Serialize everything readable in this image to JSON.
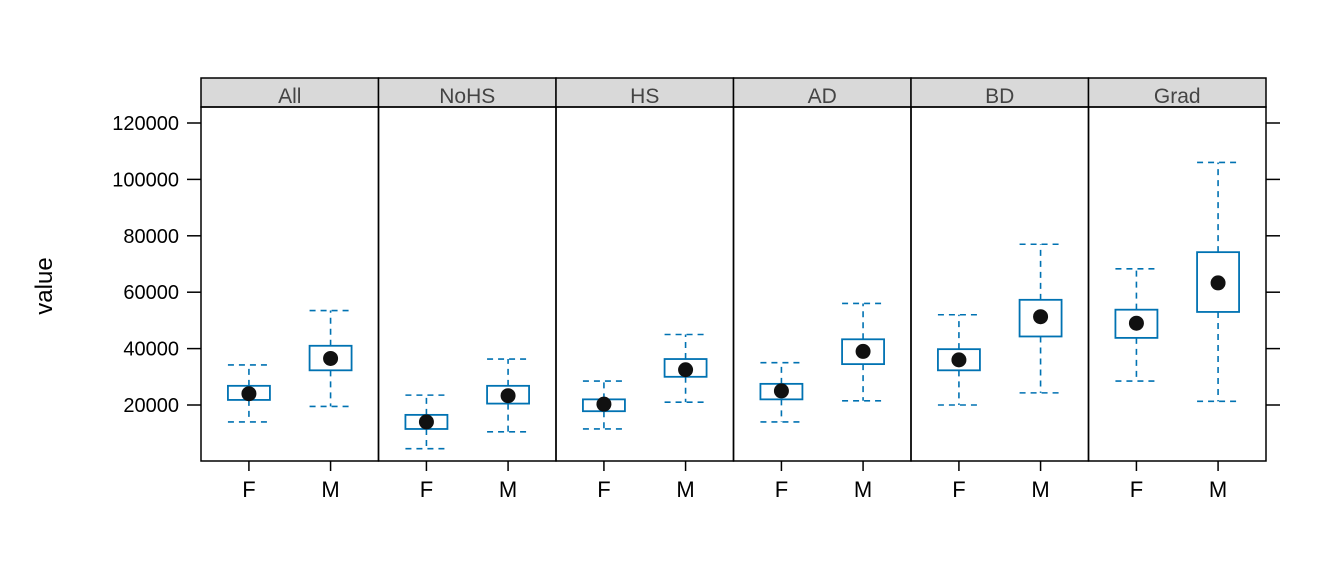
{
  "chart_data": {
    "type": "box",
    "ylabel": "value",
    "ylim": [
      0,
      125000
    ],
    "yticks": [
      20000,
      40000,
      60000,
      80000,
      100000,
      120000
    ],
    "ytick_labels": [
      "20000",
      "40000",
      "60000",
      "80000",
      "100000",
      "120000"
    ],
    "categories": [
      "F",
      "M"
    ],
    "colors": {
      "box": "#0072B2",
      "median_dot": "#111111",
      "strip": "#d9d9d9",
      "frame": "#000000"
    },
    "panels": [
      {
        "name": "All",
        "groups": [
          {
            "label": "F",
            "whisker_low": 14000,
            "q1": 21800,
            "median": 24000,
            "q3": 26800,
            "whisker_high": 34200
          },
          {
            "label": "M",
            "whisker_low": 19500,
            "q1": 32300,
            "median": 36500,
            "q3": 41000,
            "whisker_high": 53500
          }
        ]
      },
      {
        "name": "NoHS",
        "groups": [
          {
            "label": "F",
            "whisker_low": 4500,
            "q1": 11500,
            "median": 14000,
            "q3": 16500,
            "whisker_high": 23500
          },
          {
            "label": "M",
            "whisker_low": 10500,
            "q1": 20500,
            "median": 23300,
            "q3": 26800,
            "whisker_high": 36300
          }
        ]
      },
      {
        "name": "HS",
        "groups": [
          {
            "label": "F",
            "whisker_low": 11500,
            "q1": 17800,
            "median": 20300,
            "q3": 22000,
            "whisker_high": 28500
          },
          {
            "label": "M",
            "whisker_low": 21000,
            "q1": 30000,
            "median": 32500,
            "q3": 36300,
            "whisker_high": 45000
          }
        ]
      },
      {
        "name": "AD",
        "groups": [
          {
            "label": "F",
            "whisker_low": 14000,
            "q1": 22000,
            "median": 25000,
            "q3": 27500,
            "whisker_high": 35000
          },
          {
            "label": "M",
            "whisker_low": 21500,
            "q1": 34500,
            "median": 39000,
            "q3": 43300,
            "whisker_high": 56000
          }
        ]
      },
      {
        "name": "BD",
        "groups": [
          {
            "label": "F",
            "whisker_low": 20000,
            "q1": 32300,
            "median": 36000,
            "q3": 39800,
            "whisker_high": 52000
          },
          {
            "label": "M",
            "whisker_low": 24300,
            "q1": 44300,
            "median": 51300,
            "q3": 57300,
            "whisker_high": 77000
          }
        ]
      },
      {
        "name": "Grad",
        "groups": [
          {
            "label": "F",
            "whisker_low": 28500,
            "q1": 43800,
            "median": 49000,
            "q3": 53800,
            "whisker_high": 68300
          },
          {
            "label": "M",
            "whisker_low": 21300,
            "q1": 53000,
            "median": 63300,
            "q3": 74200,
            "whisker_high": 106000
          }
        ]
      }
    ]
  }
}
